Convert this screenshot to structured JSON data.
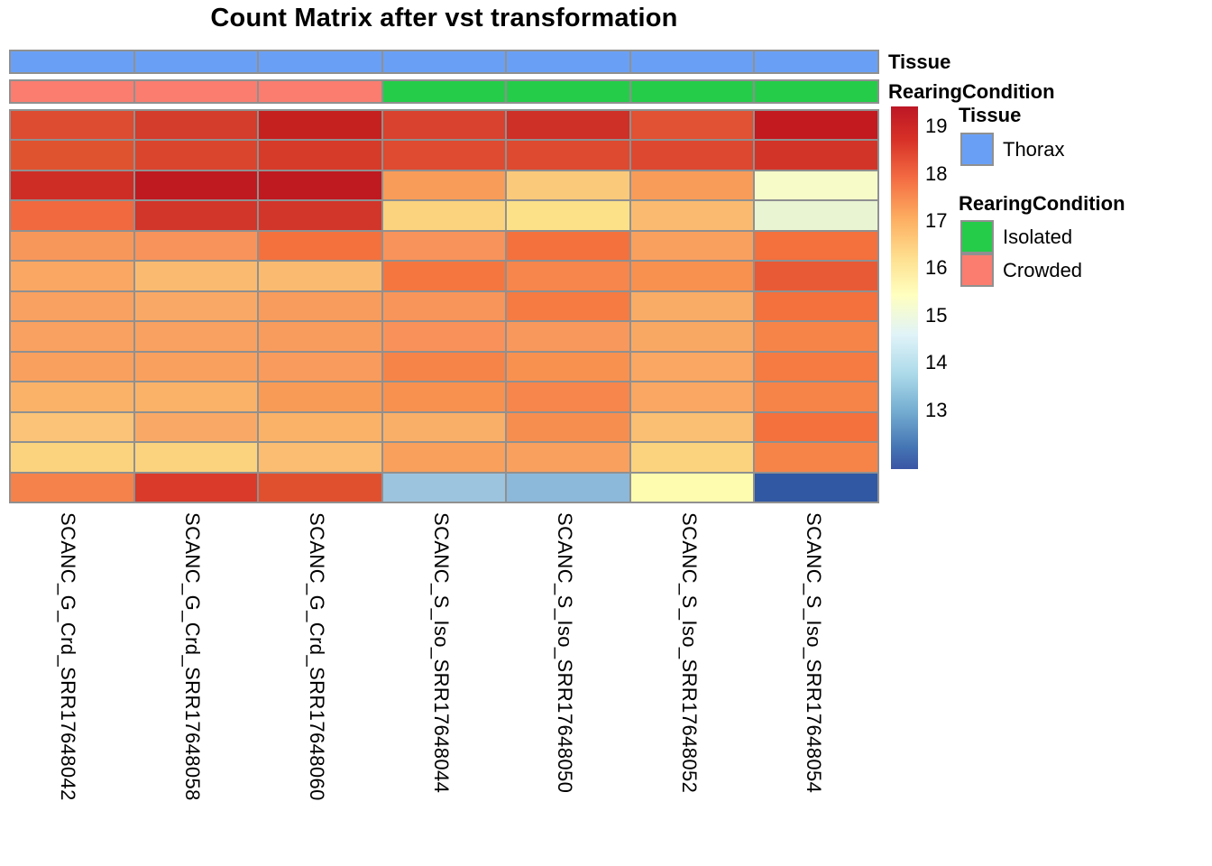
{
  "title": "Count Matrix after vst transformation",
  "annotation_bars": {
    "tissue_label": "Tissue",
    "rearing_label": "RearingCondition"
  },
  "legend": {
    "tissue": {
      "title": "Tissue",
      "items": [
        {
          "label": "Thorax",
          "color": "#69a0f6"
        }
      ]
    },
    "rearing": {
      "title": "RearingCondition",
      "items": [
        {
          "label": "Isolated",
          "color": "#24cc49"
        },
        {
          "label": "Crowded",
          "color": "#fa7d70"
        }
      ]
    }
  },
  "colors": {
    "grid": "#909090",
    "annotation": {
      "Thorax": "#69a0f6",
      "Isolated": "#24cc49",
      "Crowded": "#fa7d70"
    }
  },
  "chart_data": {
    "type": "heatmap",
    "title": "Count Matrix after vst transformation",
    "columns": [
      "SCANC_G_Crd_SRR17648042",
      "SCANC_G_Crd_SRR17648058",
      "SCANC_G_Crd_SRR17648060",
      "SCANC_S_Iso_SRR17648044",
      "SCANC_S_Iso_SRR17648050",
      "SCANC_S_Iso_SRR17648052",
      "SCANC_S_Iso_SRR17648054"
    ],
    "column_annotations": [
      {
        "name": "Tissue",
        "values": [
          "Thorax",
          "Thorax",
          "Thorax",
          "Thorax",
          "Thorax",
          "Thorax",
          "Thorax"
        ]
      },
      {
        "name": "RearingCondition",
        "values": [
          "Crowded",
          "Crowded",
          "Crowded",
          "Isolated",
          "Isolated",
          "Isolated",
          "Isolated"
        ]
      }
    ],
    "n_rows": 13,
    "values_estimated": [
      [
        18.6,
        18.85,
        19.25,
        18.75,
        19.0,
        18.5,
        19.35
      ],
      [
        18.5,
        18.7,
        18.8,
        18.6,
        18.6,
        18.65,
        18.9
      ],
      [
        19.0,
        19.4,
        19.4,
        17.2,
        16.4,
        17.2,
        14.8
      ],
      [
        18.1,
        18.9,
        18.9,
        16.2,
        15.9,
        16.6,
        14.5
      ],
      [
        17.3,
        17.35,
        17.9,
        17.35,
        17.9,
        17.1,
        17.9
      ],
      [
        17.0,
        16.6,
        16.6,
        17.8,
        17.55,
        17.4,
        18.3
      ],
      [
        17.1,
        16.95,
        17.2,
        17.3,
        17.75,
        16.9,
        17.9
      ],
      [
        17.1,
        17.1,
        17.2,
        17.35,
        17.25,
        16.95,
        17.6
      ],
      [
        17.1,
        17.1,
        17.2,
        17.6,
        17.4,
        17.0,
        17.75
      ],
      [
        16.8,
        16.8,
        17.2,
        17.4,
        17.55,
        17.0,
        17.6
      ],
      [
        16.5,
        16.95,
        16.8,
        16.85,
        17.45,
        16.55,
        17.9
      ],
      [
        16.2,
        16.2,
        16.6,
        17.1,
        17.1,
        16.2,
        17.6
      ],
      [
        17.6,
        18.8,
        18.5,
        13.4,
        13.2,
        15.2,
        12.0
      ]
    ],
    "cell_colors": [
      [
        "#dd4b31",
        "#d43c2c",
        "#c5211f",
        "#d8422e",
        "#ce2f26",
        "#e05233",
        "#c21a1f"
      ],
      [
        "#e0532f",
        "#da452e",
        "#d63b2a",
        "#de4b31",
        "#dd4a30",
        "#dc4830",
        "#d23528"
      ],
      [
        "#ce2d25",
        "#bf1a20",
        "#bf1a20",
        "#f89c59",
        "#fbc97a",
        "#f89c59",
        "#f6fbc8"
      ],
      [
        "#f0693f",
        "#d2352a",
        "#d2352a",
        "#fbd37e",
        "#fce189",
        "#fabb70",
        "#e9f4d2"
      ],
      [
        "#f8975a",
        "#f8935b",
        "#f4713d",
        "#f8935b",
        "#f4713d",
        "#f9a05f",
        "#f4703d"
      ],
      [
        "#f9a763",
        "#fabb70",
        "#fabb70",
        "#f5773f",
        "#f6864b",
        "#f89150",
        "#e85a36"
      ],
      [
        "#f9a160",
        "#f9a965",
        "#f89c5d",
        "#f8955a",
        "#f57b43",
        "#f9ac66",
        "#f4703d"
      ],
      [
        "#f9a160",
        "#f9a160",
        "#f89c5d",
        "#f8925a",
        "#f8985c",
        "#f9a864",
        "#f68449"
      ],
      [
        "#f9a05f",
        "#f9a05f",
        "#f89b5c",
        "#f68449",
        "#f89150",
        "#f9a763",
        "#f57b43"
      ],
      [
        "#fab269",
        "#fab269",
        "#f89b57",
        "#f89150",
        "#f6864b",
        "#f9a763",
        "#f68449"
      ],
      [
        "#fac377",
        "#f9a965",
        "#fab269",
        "#faaf68",
        "#f68e50",
        "#fabf72",
        "#f4703d"
      ],
      [
        "#fbd37e",
        "#fbd37e",
        "#fabd72",
        "#f9a05c",
        "#f9a05f",
        "#fbd37e",
        "#f68449"
      ],
      [
        "#f5824a",
        "#d93a2a",
        "#e0502f",
        "#9cc4df",
        "#8cb8da",
        "#fdfcaf",
        "#3058a3"
      ]
    ],
    "colorbar": {
      "ticks": [
        19,
        18,
        17,
        16,
        15,
        14,
        13
      ],
      "domain": [
        11.76,
        19.42
      ],
      "gradient_top_to_bottom": [
        "#bd1726",
        "#d73027",
        "#f46d43",
        "#fdae61",
        "#fee090",
        "#ffffbf",
        "#e0f3f8",
        "#abd9e9",
        "#74add1",
        "#4575b4",
        "#3a55a4"
      ]
    },
    "legend_position": "right",
    "grid": true
  }
}
